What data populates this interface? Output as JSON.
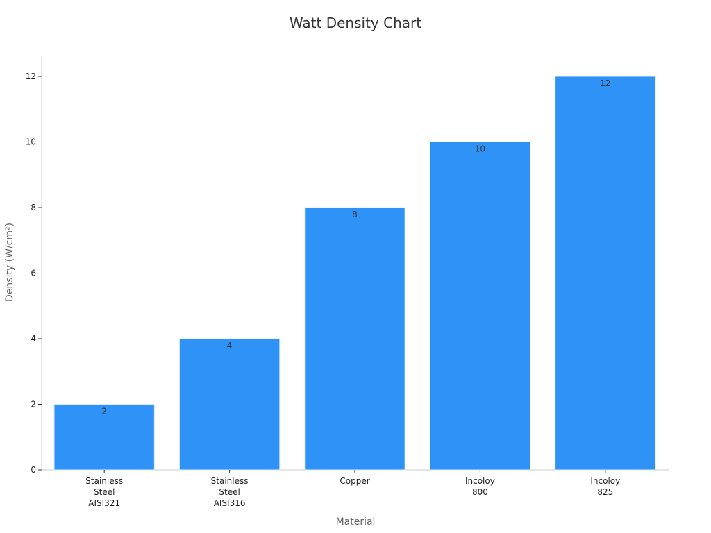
{
  "chart_data": {
    "type": "bar",
    "title": "Watt Density Chart",
    "xlabel": "Material",
    "ylabel": "Density (W/cm²)",
    "categories": [
      [
        "Stainless",
        "Steel",
        "AISI321"
      ],
      [
        "Stainless",
        "Steel",
        "AISI316"
      ],
      [
        "Copper"
      ],
      [
        "Incoloy",
        "800"
      ],
      [
        "Incoloy",
        "825"
      ]
    ],
    "values": [
      2,
      4,
      8,
      10,
      12
    ],
    "ylim": [
      0,
      12.6
    ],
    "yticks": [
      0,
      2,
      4,
      6,
      8,
      10,
      12
    ],
    "grid": false,
    "bar_color": "#2f92f7",
    "bar_edge_color": "#dce9f7"
  }
}
